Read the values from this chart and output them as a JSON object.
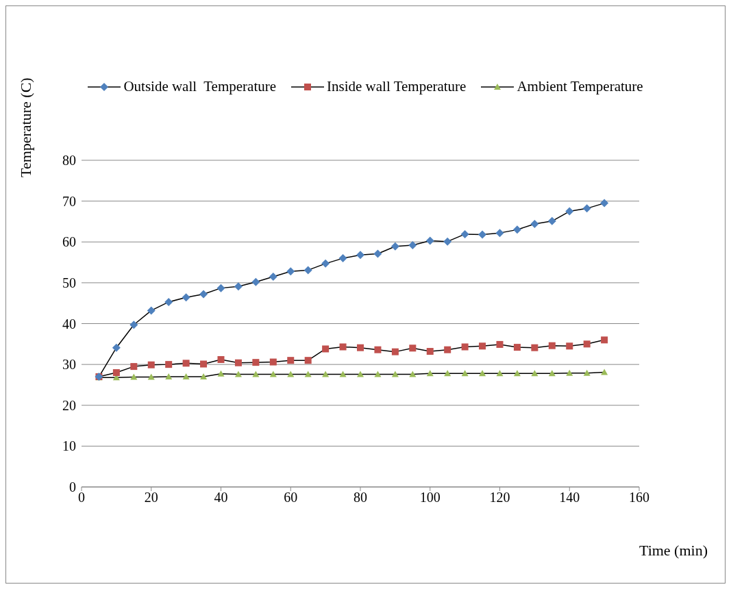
{
  "chart_data": {
    "type": "line",
    "xlabel": "Time (min)",
    "ylabel": "Temperature (C)",
    "x": [
      5,
      10,
      15,
      20,
      25,
      30,
      35,
      40,
      45,
      50,
      55,
      60,
      65,
      70,
      75,
      80,
      85,
      90,
      95,
      100,
      105,
      110,
      115,
      120,
      125,
      130,
      135,
      140,
      145,
      150
    ],
    "series": [
      {
        "name": "Outside wall  Temperature",
        "color": "#4f81bd",
        "marker": "diamond",
        "values": [
          27.0,
          34.1,
          39.7,
          43.2,
          45.3,
          46.4,
          47.2,
          48.7,
          49.1,
          50.2,
          51.5,
          52.8,
          53.1,
          54.7,
          56.0,
          56.8,
          57.1,
          58.9,
          59.2,
          60.3,
          60.1,
          61.9,
          61.8,
          62.2,
          63.0,
          64.4,
          65.1,
          67.5,
          68.2,
          69.5
        ]
      },
      {
        "name": "Inside wall Temperature",
        "color": "#c0504d",
        "marker": "square",
        "values": [
          27.0,
          28.0,
          29.5,
          29.9,
          30.0,
          30.3,
          30.1,
          31.2,
          30.4,
          30.5,
          30.6,
          31.0,
          31.0,
          33.8,
          34.3,
          34.1,
          33.6,
          33.1,
          34.0,
          33.2,
          33.6,
          34.3,
          34.5,
          34.9,
          34.2,
          34.1,
          34.6,
          34.5,
          35.0,
          36.0
        ]
      },
      {
        "name": "Ambient Temperature",
        "color": "#9bbb59",
        "marker": "triangle",
        "values": [
          26.8,
          26.8,
          26.9,
          26.9,
          27.0,
          27.0,
          27.0,
          27.7,
          27.6,
          27.6,
          27.6,
          27.6,
          27.6,
          27.6,
          27.6,
          27.6,
          27.6,
          27.6,
          27.6,
          27.8,
          27.8,
          27.8,
          27.8,
          27.8,
          27.8,
          27.8,
          27.8,
          27.9,
          27.9,
          28.1
        ]
      }
    ],
    "xlim": [
      0,
      160
    ],
    "xticks": [
      0,
      20,
      40,
      60,
      80,
      100,
      120,
      140,
      160
    ],
    "ylim": [
      0,
      80
    ],
    "yticks": [
      0,
      10,
      20,
      30,
      40,
      50,
      60,
      70,
      80
    ],
    "grid": "y",
    "legend": "top",
    "line_style": "solid"
  }
}
